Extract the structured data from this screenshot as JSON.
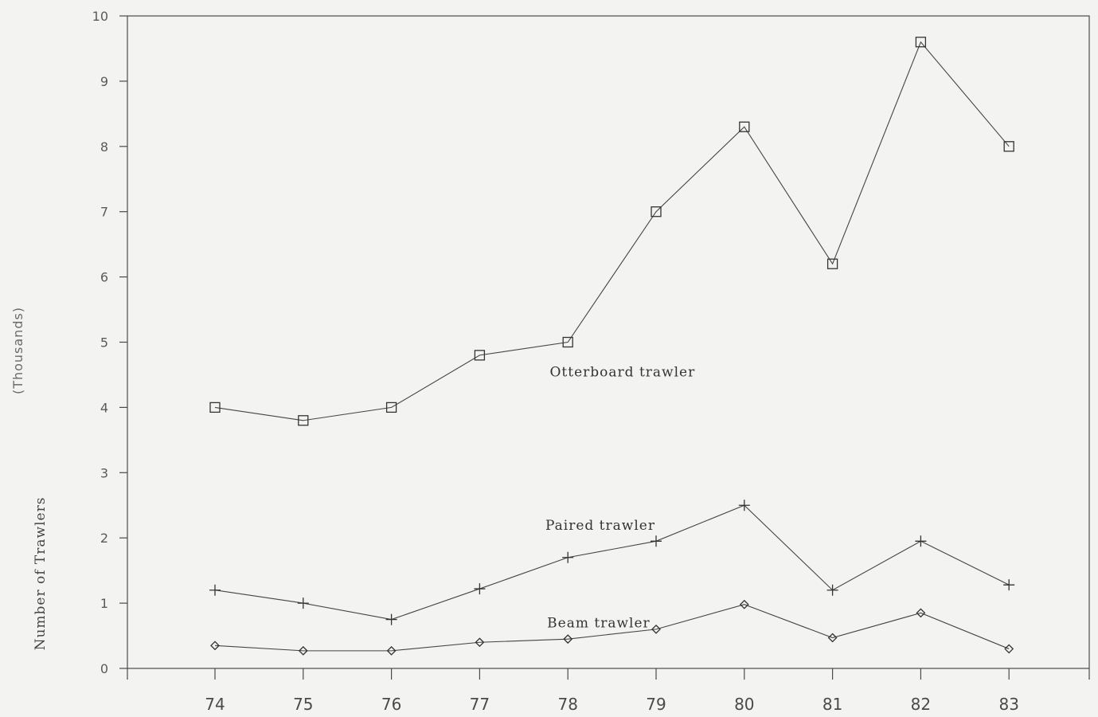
{
  "chart_data": {
    "type": "line",
    "ylabel": "Number of Trawlers",
    "ylabel_unit": "(Thousands)",
    "x": [
      "74",
      "75",
      "76",
      "77",
      "78",
      "79",
      "80",
      "81",
      "82",
      "83"
    ],
    "ylim": [
      0,
      10
    ],
    "yticks": [
      "0",
      "1",
      "2",
      "3",
      "4",
      "5",
      "6",
      "7",
      "8",
      "9",
      "10"
    ],
    "grid": false,
    "series": [
      {
        "name": "Otterboard trawler",
        "marker": "square",
        "values": [
          4.0,
          3.8,
          4.0,
          4.8,
          5.0,
          7.0,
          8.3,
          6.2,
          9.6,
          8.0
        ]
      },
      {
        "name": "Paired trawler",
        "marker": "plus",
        "values": [
          1.2,
          1.0,
          0.75,
          1.22,
          1.7,
          1.95,
          2.5,
          1.2,
          1.95,
          1.28
        ]
      },
      {
        "name": "Beam trawler",
        "marker": "diamond",
        "values": [
          0.35,
          0.27,
          0.27,
          0.4,
          0.45,
          0.6,
          0.98,
          0.47,
          0.85,
          0.3
        ]
      }
    ],
    "colors": {
      "line": "#444444",
      "background": "#f3f3f1"
    }
  }
}
